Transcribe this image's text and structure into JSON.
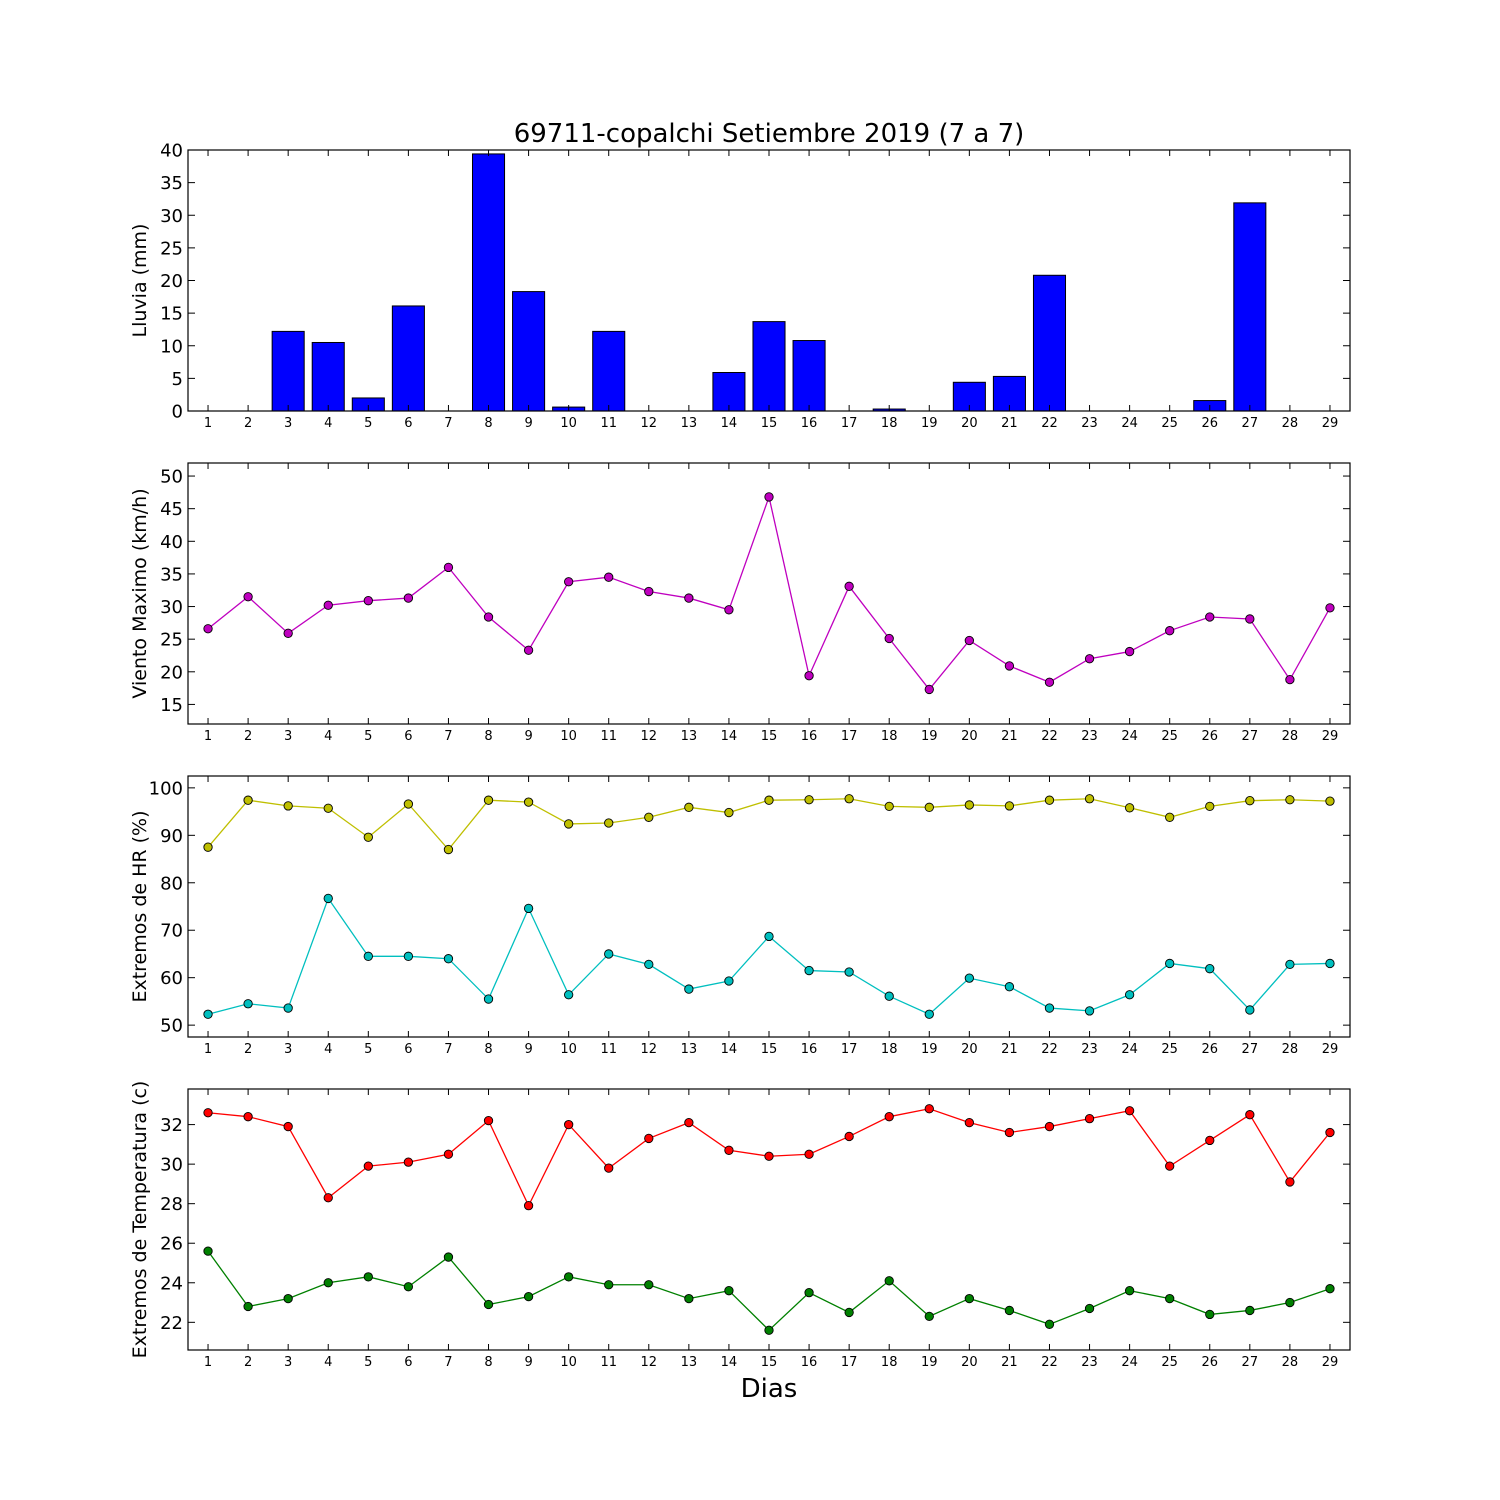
{
  "figure": {
    "title": "69711-copalchi Setiembre 2019  (7 a 7)",
    "xlabel": "Dias"
  },
  "chart_data": [
    {
      "type": "bar",
      "title": "69711-copalchi Setiembre 2019  (7 a 7)",
      "ylabel": "Lluvia (mm)",
      "xlabel": "",
      "categories": [
        "1",
        "2",
        "3",
        "4",
        "5",
        "6",
        "7",
        "8",
        "9",
        "10",
        "11",
        "12",
        "13",
        "14",
        "15",
        "16",
        "17",
        "18",
        "19",
        "20",
        "21",
        "22",
        "23",
        "24",
        "25",
        "26",
        "27",
        "28",
        "29"
      ],
      "x": [
        1,
        2,
        3,
        4,
        5,
        6,
        7,
        8,
        9,
        10,
        11,
        12,
        13,
        14,
        15,
        16,
        17,
        18,
        19,
        20,
        21,
        22,
        23,
        24,
        25,
        26,
        27,
        28,
        29
      ],
      "series": [
        {
          "values": [
            0,
            0,
            12.2,
            10.5,
            2.0,
            16.1,
            0,
            39.4,
            18.3,
            0.6,
            12.2,
            0,
            0,
            5.9,
            13.7,
            10.8,
            0,
            0.3,
            0,
            4.4,
            5.3,
            20.8,
            0,
            0,
            0,
            1.6,
            31.9,
            0,
            0
          ],
          "color": "#0000ff"
        }
      ],
      "ylim": [
        0,
        40
      ],
      "yticks": [
        0,
        5,
        10,
        15,
        20,
        25,
        30,
        35,
        40
      ],
      "grid": false
    },
    {
      "type": "line",
      "ylabel": "Viento Maximo (km/h)",
      "xlabel": "",
      "categories": [
        "1",
        "2",
        "3",
        "4",
        "5",
        "6",
        "7",
        "8",
        "9",
        "10",
        "11",
        "12",
        "13",
        "14",
        "15",
        "16",
        "17",
        "18",
        "19",
        "20",
        "21",
        "22",
        "23",
        "24",
        "25",
        "26",
        "27",
        "28",
        "29"
      ],
      "x": [
        1,
        2,
        3,
        4,
        5,
        6,
        7,
        8,
        9,
        10,
        11,
        12,
        13,
        14,
        15,
        16,
        17,
        18,
        19,
        20,
        21,
        22,
        23,
        24,
        25,
        26,
        27,
        28,
        29
      ],
      "series": [
        {
          "values": [
            26.6,
            31.5,
            25.9,
            30.2,
            30.9,
            31.3,
            36.0,
            28.4,
            23.3,
            33.8,
            34.5,
            32.3,
            31.3,
            29.5,
            46.8,
            19.4,
            33.1,
            25.1,
            17.3,
            24.8,
            20.9,
            18.4,
            22.0,
            23.1,
            26.3,
            28.4,
            28.1,
            18.8,
            29.8
          ],
          "color": "#bf00bf"
        }
      ],
      "ylim": [
        12.0,
        52.0
      ],
      "yticks": [
        15,
        20,
        25,
        30,
        35,
        40,
        45,
        50
      ],
      "grid": false
    },
    {
      "type": "line",
      "ylabel": "Extremos de HR (%)",
      "xlabel": "",
      "categories": [
        "1",
        "2",
        "3",
        "4",
        "5",
        "6",
        "7",
        "8",
        "9",
        "10",
        "11",
        "12",
        "13",
        "14",
        "15",
        "16",
        "17",
        "18",
        "19",
        "20",
        "21",
        "22",
        "23",
        "24",
        "25",
        "26",
        "27",
        "28",
        "29"
      ],
      "x": [
        1,
        2,
        3,
        4,
        5,
        6,
        7,
        8,
        9,
        10,
        11,
        12,
        13,
        14,
        15,
        16,
        17,
        18,
        19,
        20,
        21,
        22,
        23,
        24,
        25,
        26,
        27,
        28,
        29
      ],
      "series": [
        {
          "values": [
            87.5,
            97.4,
            96.2,
            95.7,
            89.6,
            96.6,
            87.0,
            97.4,
            97.0,
            92.4,
            92.6,
            93.8,
            95.9,
            94.8,
            97.4,
            97.5,
            97.7,
            96.1,
            95.9,
            96.4,
            96.2,
            97.4,
            97.7,
            95.8,
            93.8,
            96.1,
            97.3,
            97.5,
            97.2
          ],
          "color": "#bfbf00"
        },
        {
          "values": [
            52.3,
            54.5,
            53.6,
            76.7,
            64.5,
            64.5,
            64.0,
            55.5,
            74.6,
            56.4,
            65.0,
            62.8,
            57.6,
            59.3,
            68.7,
            61.5,
            61.2,
            56.1,
            52.3,
            59.9,
            58.1,
            53.6,
            53.0,
            56.4,
            63.0,
            61.9,
            53.2,
            62.8,
            63.0
          ],
          "color": "#00bfbf"
        }
      ],
      "ylim": [
        47.5,
        102.5
      ],
      "yticks": [
        50,
        60,
        70,
        80,
        90,
        100
      ],
      "grid": false
    },
    {
      "type": "line",
      "ylabel": "Extremos de Temperatura (c)",
      "xlabel": "Dias",
      "categories": [
        "1",
        "2",
        "3",
        "4",
        "5",
        "6",
        "7",
        "8",
        "9",
        "10",
        "11",
        "12",
        "13",
        "14",
        "15",
        "16",
        "17",
        "18",
        "19",
        "20",
        "21",
        "22",
        "23",
        "24",
        "25",
        "26",
        "27",
        "28",
        "29"
      ],
      "x": [
        1,
        2,
        3,
        4,
        5,
        6,
        7,
        8,
        9,
        10,
        11,
        12,
        13,
        14,
        15,
        16,
        17,
        18,
        19,
        20,
        21,
        22,
        23,
        24,
        25,
        26,
        27,
        28,
        29
      ],
      "series": [
        {
          "values": [
            32.6,
            32.4,
            31.9,
            28.3,
            29.9,
            30.1,
            30.5,
            32.2,
            27.9,
            32.0,
            29.8,
            31.3,
            32.1,
            30.7,
            30.4,
            30.5,
            31.4,
            32.4,
            32.8,
            32.1,
            31.6,
            31.9,
            32.3,
            32.7,
            29.9,
            31.2,
            32.5,
            29.1,
            31.6
          ],
          "color": "#ff0000"
        },
        {
          "values": [
            25.6,
            22.8,
            23.2,
            24.0,
            24.3,
            23.8,
            25.3,
            22.9,
            23.3,
            24.3,
            23.9,
            23.9,
            23.2,
            23.6,
            21.6,
            23.5,
            22.5,
            24.1,
            22.3,
            23.2,
            22.6,
            21.9,
            22.7,
            23.6,
            23.2,
            22.4,
            22.6,
            23.0,
            23.7
          ],
          "color": "#008000"
        }
      ],
      "ylim": [
        20.6,
        33.8
      ],
      "yticks": [
        22,
        24,
        26,
        28,
        30,
        32
      ],
      "grid": false
    }
  ]
}
